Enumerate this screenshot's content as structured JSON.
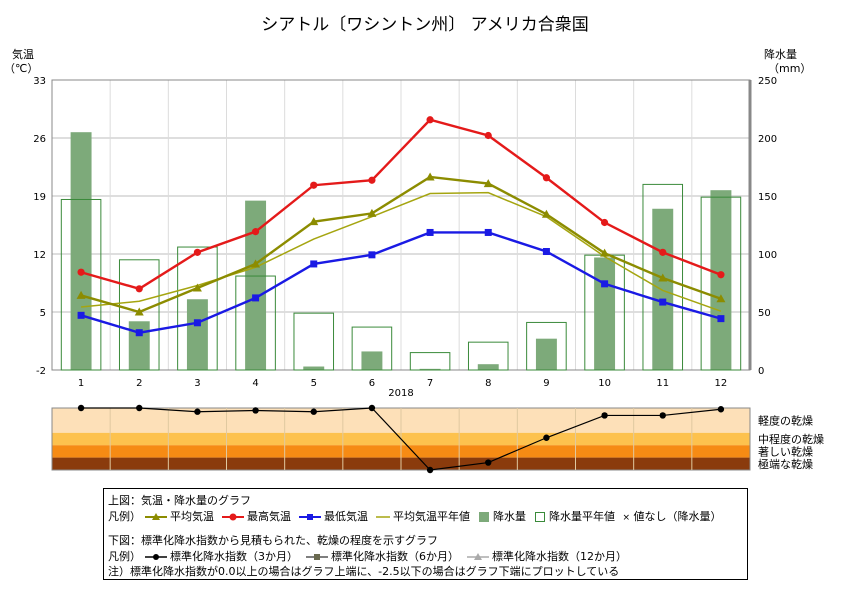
{
  "title": "シアトル〔ワシントン州〕 アメリカ合衆国",
  "left_axis_title": [
    "気温",
    "（℃）"
  ],
  "right_axis_title": [
    "降水量",
    "（mm）"
  ],
  "year_label": "2018",
  "chart_data": {
    "type": "bar+line",
    "categories": [
      "1",
      "2",
      "3",
      "4",
      "5",
      "6",
      "7",
      "8",
      "9",
      "10",
      "11",
      "12"
    ],
    "y_left": {
      "ylim": [
        -2,
        33
      ],
      "ticks": [
        "-2",
        "5",
        "12",
        "19",
        "26",
        "33"
      ]
    },
    "y_right": {
      "ylim": [
        0,
        250
      ],
      "ticks": [
        "0",
        "50",
        "100",
        "150",
        "200",
        "250"
      ]
    },
    "bars": [
      {
        "name": "降水量",
        "axis": "right",
        "values": [
          205,
          42,
          61,
          146,
          3,
          16,
          1,
          5,
          27,
          97,
          139,
          155
        ],
        "color": "#7daa7a"
      },
      {
        "name": "降水量平年値",
        "axis": "right",
        "values": [
          147,
          95,
          106,
          81,
          49,
          37,
          15,
          24,
          41,
          99,
          160,
          149
        ],
        "color": "#3a8a3a"
      }
    ],
    "lines": [
      {
        "name": "最高気温",
        "axis": "left",
        "values": [
          9.8,
          7.8,
          12.2,
          14.7,
          20.3,
          20.9,
          28.2,
          26.3,
          21.2,
          15.8,
          12.2,
          9.5
        ],
        "color": "#e41a1a",
        "marker": "circle"
      },
      {
        "name": "平均気温",
        "axis": "left",
        "values": [
          7.0,
          5.0,
          7.9,
          10.8,
          15.9,
          16.9,
          21.3,
          20.5,
          16.8,
          12.1,
          9.1,
          6.6
        ],
        "color": "#8c8c00",
        "marker": "triangle"
      },
      {
        "name": "最低気温",
        "axis": "left",
        "values": [
          4.6,
          2.5,
          3.7,
          6.7,
          10.8,
          11.9,
          14.6,
          14.6,
          12.3,
          8.4,
          6.2,
          4.2
        ],
        "color": "#1a1ae4",
        "marker": "square"
      },
      {
        "name": "平均気温平年値",
        "axis": "left",
        "values": [
          5.6,
          6.3,
          8.2,
          10.4,
          13.8,
          16.5,
          19.3,
          19.4,
          16.5,
          11.7,
          7.6,
          5.1
        ],
        "color": "#a5a510",
        "marker": "none"
      }
    ],
    "spi": {
      "bands": [
        "軽度の乾燥",
        "中程度の乾燥",
        "著しい乾燥",
        "極端な乾燥"
      ],
      "band_colors": [
        "#fde0b8",
        "#fdc24e",
        "#f68b14",
        "#8a3b0c"
      ],
      "levels": [
        0,
        -1.0,
        -1.5,
        -2.0,
        -2.5
      ],
      "series": [
        {
          "name": "標準化降水指数（3か月）",
          "values": [
            0,
            0,
            -0.15,
            -0.1,
            -0.15,
            0,
            -2.5,
            -2.2,
            -1.2,
            -0.3,
            -0.3,
            -0.05
          ],
          "color": "#000000"
        }
      ]
    }
  },
  "legend": {
    "upper_title": "上図：気温・降水量のグラフ",
    "upper_prefix": "凡例）",
    "upper_items": [
      "平均気温",
      "最高気温",
      "最低気温",
      "平均気温平年値",
      "降水量",
      "降水量平年値"
    ],
    "no_value_note": "値なし（降水量）",
    "lower_title": "下図：標準化降水指数から見積もられた、乾燥の程度を示すグラフ",
    "lower_prefix": "凡例）",
    "lower_items": [
      "標準化降水指数（3か月）",
      "標準化降水指数（6か月）",
      "標準化降水指数（12か月）"
    ],
    "note": "注）標準化降水指数が0.0以上の場合はグラフ上端に、-2.5以下の場合はグラフ下端にプロットしている"
  }
}
